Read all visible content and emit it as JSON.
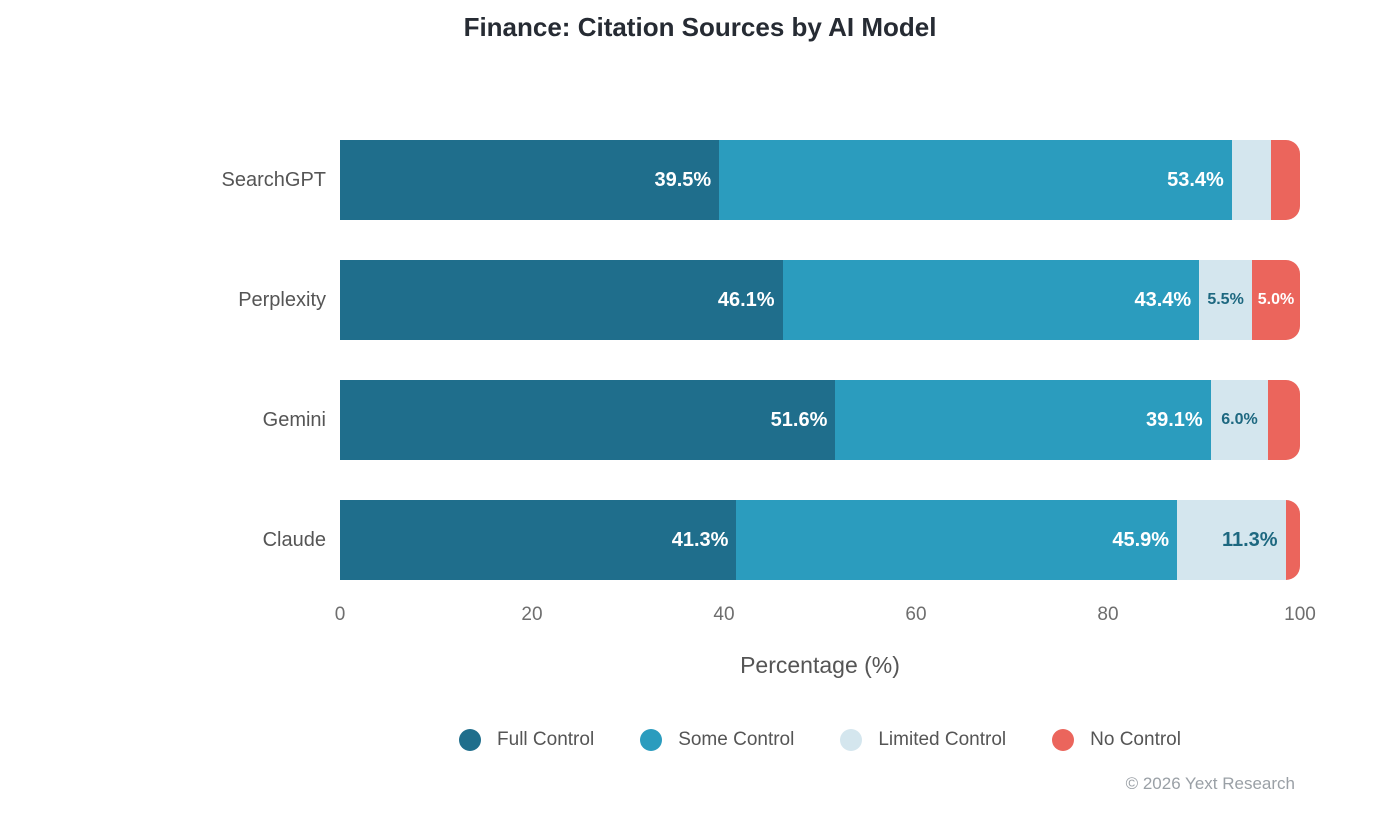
{
  "title": "Finance: Citation Sources by AI Model",
  "axis": {
    "xlabel": "Percentage (%)",
    "ticks": [
      0,
      20,
      40,
      60,
      80,
      100
    ]
  },
  "footer": "© 2026 Yext Research",
  "colors": {
    "full_control": "#1f6e8c",
    "some_control": "#2b9cbe",
    "limited_control": "#d4e6ee",
    "no_control": "#eb655c",
    "label_on_light": "#1d6880",
    "label_on_dark": "#ffffff",
    "title_text": "#262b33",
    "axis_text": "#6e6e6e",
    "category_text": "#555555",
    "footer_text": "#9aa0a6"
  },
  "legend": [
    {
      "label": "Full Control",
      "color": "#1f6e8c"
    },
    {
      "label": "Some Control",
      "color": "#2b9cbe"
    },
    {
      "label": "Limited Control",
      "color": "#d4e6ee"
    },
    {
      "label": "No Control",
      "color": "#eb655c"
    }
  ],
  "chart_data": {
    "type": "bar",
    "stacked": true,
    "orientation": "horizontal",
    "title": "Finance: Citation Sources by AI Model",
    "xlabel": "Percentage (%)",
    "xlim": [
      0,
      100
    ],
    "x_ticks": [
      0,
      20,
      40,
      60,
      80,
      100
    ],
    "grid": false,
    "legend_position": "bottom",
    "categories": [
      "SearchGPT",
      "Perplexity",
      "Gemini",
      "Claude"
    ],
    "series": [
      {
        "name": "Full Control",
        "color": "#1f6e8c",
        "label_color": "#ffffff",
        "values": [
          39.5,
          46.1,
          51.6,
          41.3
        ],
        "labels": [
          "39.5%",
          "46.1%",
          "51.6%",
          "41.3%"
        ]
      },
      {
        "name": "Some Control",
        "color": "#2b9cbe",
        "label_color": "#ffffff",
        "values": [
          53.4,
          43.4,
          39.1,
          45.9
        ],
        "labels": [
          "53.4%",
          "43.4%",
          "39.1%",
          "45.9%"
        ]
      },
      {
        "name": "Limited Control",
        "color": "#d4e6ee",
        "label_color": "#1d6880",
        "values": [
          4.1,
          5.5,
          6.0,
          11.3
        ],
        "labels": [
          "",
          "5.5%",
          "6.0%",
          "11.3%"
        ]
      },
      {
        "name": "No Control",
        "color": "#eb655c",
        "label_color": "#ffffff",
        "values": [
          3.0,
          5.0,
          3.3,
          1.5
        ],
        "labels": [
          "",
          "5.0%",
          "",
          ""
        ]
      }
    ]
  }
}
